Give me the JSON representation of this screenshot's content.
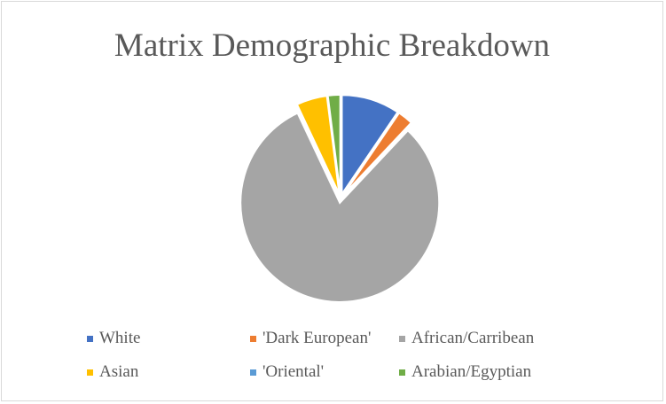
{
  "chart_data": {
    "type": "pie",
    "title": "Matrix Demographic Breakdown",
    "categories": [
      "White",
      "'Dark European'",
      "African/Carribean",
      "Asian",
      "'Oriental'",
      "Arabian/Egyptian"
    ],
    "values": [
      9.5,
      2.5,
      81,
      5,
      0,
      2
    ],
    "unit": "percent (estimated share)",
    "colors": [
      "#4472c4",
      "#ed7d31",
      "#a5a5a5",
      "#ffc000",
      "#5b9bd5",
      "#70ad47"
    ],
    "start_angle_deg": 0,
    "direction": "clockwise",
    "exploded": true,
    "legend_position": "bottom",
    "legend_icon": "square-bullet"
  }
}
